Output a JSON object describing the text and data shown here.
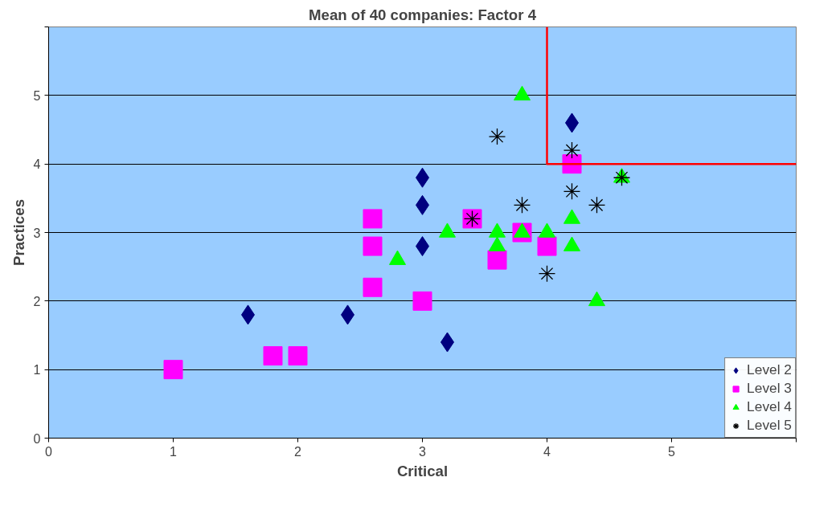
{
  "chart_data": {
    "type": "scatter",
    "title": "Mean of 40 companies: Factor 4",
    "xlabel": "Critical",
    "ylabel": "Practices",
    "xlim": [
      0,
      6
    ],
    "ylim": [
      0,
      6
    ],
    "xticks": [
      0,
      1,
      2,
      3,
      4,
      5,
      {
        "value": 6,
        "label": null
      }
    ],
    "yticks": [
      0,
      1,
      2,
      3,
      4,
      5,
      {
        "value": 6,
        "label": null
      }
    ],
    "grid": "y",
    "legend": "bottom right",
    "series": [
      {
        "name": "Level 2",
        "color": "#000080",
        "marker": "diamond",
        "x": [
          1.6,
          2.4,
          3,
          3,
          3,
          3.2,
          4.2
        ],
        "values": [
          1.8,
          1.8,
          3.8,
          3.4,
          2.8,
          1.4,
          4.6
        ]
      },
      {
        "name": "Level 3",
        "color": "#ff00ff",
        "marker": "square",
        "x": [
          1,
          1.8,
          2,
          2.6,
          2.6,
          2.6,
          3,
          3.4,
          3.6,
          3.8,
          4,
          4.2
        ],
        "values": [
          1,
          1.2,
          1.2,
          3.2,
          2.8,
          2.2,
          2,
          3.2,
          2.6,
          3,
          2.8,
          4
        ]
      },
      {
        "name": "Level 4",
        "color": "#00ff00",
        "marker": "triangle",
        "x": [
          2.8,
          3.2,
          3.6,
          3.6,
          3.8,
          3.8,
          4,
          4.2,
          4.2,
          4.4,
          4.6
        ],
        "values": [
          2.6,
          3,
          3,
          2.8,
          5,
          3,
          3,
          3.2,
          2.8,
          2,
          3.8
        ]
      },
      {
        "name": "Level 5",
        "color": "#000000",
        "marker": "cross",
        "x": [
          3.4,
          3.6,
          3.8,
          4,
          4.2,
          4.2,
          4.4,
          4.6
        ],
        "values": [
          3.2,
          4.4,
          3.4,
          2.4,
          4.2,
          3.6,
          3.4,
          3.8
        ]
      },
      {
        "type": "line",
        "color": "#ff0000",
        "x": [
          4,
          4,
          6
        ],
        "values": [
          6,
          4,
          4
        ]
      }
    ]
  }
}
